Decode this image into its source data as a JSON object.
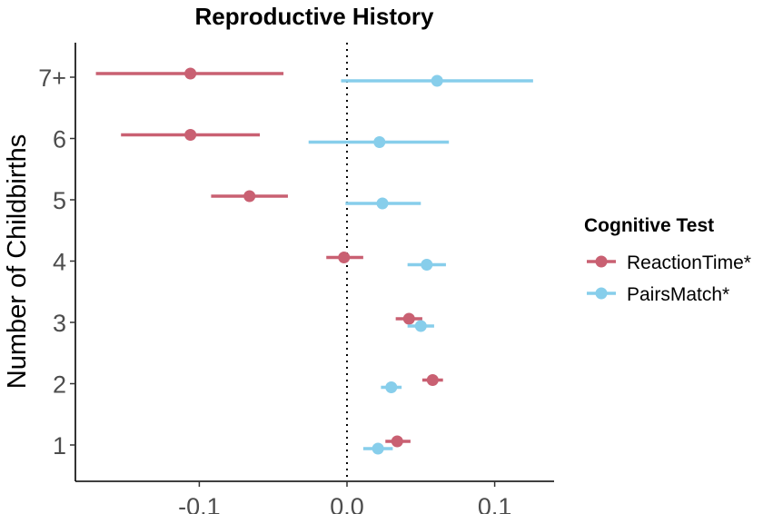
{
  "chart_data": {
    "type": "forest",
    "title": "Reproductive History",
    "xlabel": "",
    "ylabel": "Number of Childbirths",
    "xlim": [
      -0.183,
      0.142
    ],
    "x_ticks": [
      -0.1,
      0.0,
      0.1
    ],
    "x_tick_labels": [
      "-0.1",
      "0.0",
      "0.1"
    ],
    "categories": [
      "1",
      "2",
      "3",
      "4",
      "5",
      "6",
      "7+"
    ],
    "reference_line": 0.0,
    "legend": {
      "title": "Cognitive Test",
      "position": "right"
    },
    "series": [
      {
        "name": "ReactionTime*",
        "color": "#c96072",
        "estimates": [
          0.034,
          0.058,
          0.042,
          -0.002,
          -0.066,
          -0.106,
          -0.106
        ],
        "lower": [
          0.026,
          0.051,
          0.033,
          -0.014,
          -0.092,
          -0.153,
          -0.17
        ],
        "upper": [
          0.043,
          0.065,
          0.051,
          0.011,
          -0.04,
          -0.059,
          -0.043
        ]
      },
      {
        "name": "PairsMatch*",
        "color": "#87ceeb",
        "estimates": [
          0.021,
          0.03,
          0.05,
          0.054,
          0.024,
          0.022,
          0.061
        ],
        "lower": [
          0.011,
          0.023,
          0.041,
          0.041,
          -0.001,
          -0.026,
          -0.004
        ],
        "upper": [
          0.031,
          0.037,
          0.059,
          0.067,
          0.05,
          0.069,
          0.126
        ]
      }
    ]
  }
}
